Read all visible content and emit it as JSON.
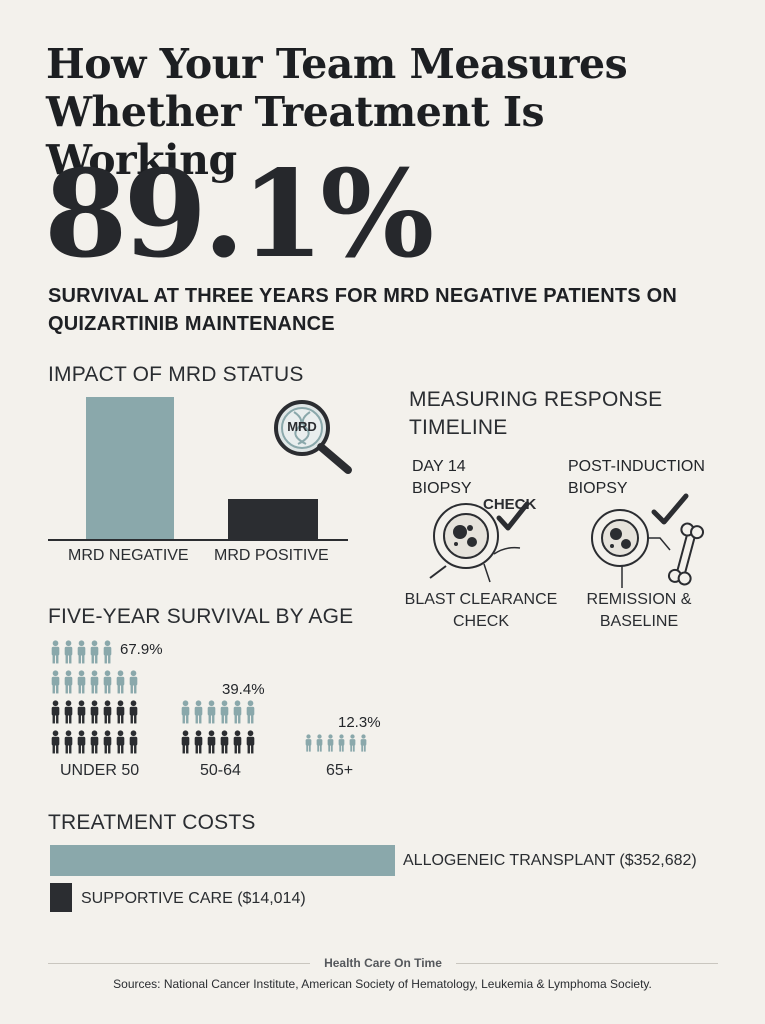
{
  "title": "How Your Team Measures Whether Treatment Is Working",
  "headline_stat": {
    "value": "89.1%",
    "caption": "SURVIVAL AT THREE YEARS FOR MRD NEGATIVE PATIENTS ON QUIZARTINIB MAINTENANCE"
  },
  "mrd_impact": {
    "title": "IMPACT OF MRD STATUS",
    "icon_label": "MRD",
    "bars": [
      {
        "label": "MRD NEGATIVE",
        "relative_value": 1.0,
        "color": "#8aa8ab"
      },
      {
        "label": "MRD POSITIVE",
        "relative_value": 0.28,
        "color": "#2b2d31"
      }
    ]
  },
  "timeline": {
    "title_line1": "MEASURING RESPONSE",
    "title_line2": "TIMELINE",
    "steps": [
      {
        "top_line1": "DAY 14",
        "top_line2": "BIOPSY",
        "tag": "CHECK",
        "bottom_line1": "BLAST CLEARANCE",
        "bottom_line2": "CHECK"
      },
      {
        "top_line1": "POST-INDUCTION",
        "top_line2": "BIOPSY",
        "bottom_line1": "REMISSION &",
        "bottom_line2": "BASELINE"
      }
    ]
  },
  "age_survival": {
    "title": "FIVE-YEAR SURVIVAL BY AGE",
    "groups": [
      {
        "label": "UNDER 50",
        "value": "67.9%"
      },
      {
        "label": "50-64",
        "value": "39.4%"
      },
      {
        "label": "65+",
        "value": "12.3%"
      }
    ]
  },
  "costs": {
    "title": "TREATMENT COSTS",
    "items": [
      {
        "label": "ALLOGENEIC TRANSPLANT ($352,682)",
        "value": 352682,
        "color": "#8aa8ab"
      },
      {
        "label": "SUPPORTIVE CARE ($14,014)",
        "value": 14014,
        "color": "#2b2d31"
      }
    ]
  },
  "footer": {
    "brand": "Health Care On Time",
    "sources": "Sources: National Cancer Institute, American Society of Hematology, Leukemia & Lymphoma Society."
  }
}
